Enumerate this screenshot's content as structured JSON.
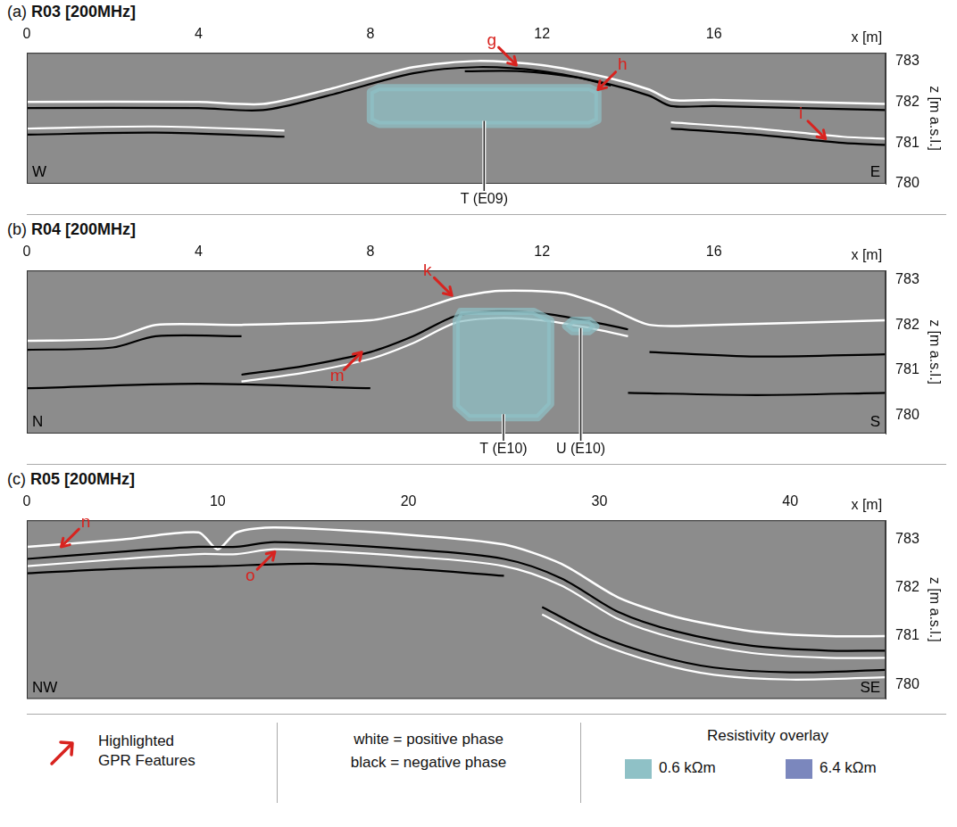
{
  "chart_data": [
    {
      "type": "line",
      "panel": "(a)",
      "title": "R03 [200MHz]",
      "x_label": "x [m]",
      "y_label": "z [m a.s.l.]",
      "xlim": [
        0,
        20
      ],
      "xticks": [
        0,
        4,
        8,
        12,
        16
      ],
      "ylim": [
        780,
        783.2
      ],
      "yticks": [
        780,
        781,
        782,
        783
      ],
      "grid": false,
      "direction_labels": {
        "left": "W",
        "right": "E"
      },
      "surface": {
        "x": [
          0,
          4,
          5.5,
          7,
          9,
          10.5,
          12,
          13.5,
          14.5,
          15,
          16,
          20
        ],
        "z": [
          782.0,
          782.0,
          781.95,
          782.3,
          782.85,
          783.0,
          782.9,
          782.6,
          782.3,
          782.05,
          782.05,
          781.95
        ]
      },
      "reflectors": [
        {
          "color": "#000000",
          "x": [
            0,
            4,
            5.5,
            7,
            9,
            10.5,
            12,
            13.5,
            14.5,
            15,
            16,
            20
          ],
          "z": [
            781.85,
            781.85,
            781.8,
            782.15,
            782.7,
            782.85,
            782.75,
            782.45,
            782.15,
            781.9,
            781.9,
            781.8
          ]
        },
        {
          "color": "#000000",
          "x": [
            10.2,
            11.5,
            12.8,
            13.6
          ],
          "z": [
            782.75,
            782.75,
            782.6,
            782.4
          ]
        },
        {
          "color": "#000000",
          "x": [
            0,
            3,
            6
          ],
          "z": [
            781.2,
            781.25,
            781.15
          ]
        },
        {
          "color": "#ffffff",
          "x": [
            0,
            3,
            6
          ],
          "z": [
            781.35,
            781.4,
            781.3
          ]
        },
        {
          "color": "#000000",
          "x": [
            15,
            17,
            19,
            20
          ],
          "z": [
            781.35,
            781.2,
            781.0,
            780.95
          ]
        },
        {
          "color": "#ffffff",
          "x": [
            15,
            17,
            19,
            20
          ],
          "z": [
            781.5,
            781.35,
            781.15,
            781.1
          ]
        }
      ],
      "resistivity_bodies": [
        {
          "label": "T (E09)",
          "resistivity": 0.6,
          "x": [
            8.2,
            13.1,
            13.3,
            13.3,
            13.1,
            8.2,
            8.0,
            8.0
          ],
          "z": [
            782.35,
            782.35,
            782.25,
            781.55,
            781.45,
            781.45,
            781.55,
            782.25
          ]
        }
      ],
      "features": [
        {
          "label": "g",
          "x": 11.4,
          "z": 782.9,
          "direction": "down-right"
        },
        {
          "label": "h",
          "x": 13.3,
          "z": 782.3,
          "direction": "down-left"
        },
        {
          "label": "i",
          "x": 18.6,
          "z": 781.1,
          "direction": "down-right"
        }
      ]
    },
    {
      "type": "line",
      "panel": "(b)",
      "title": "R04 [200MHz]",
      "x_label": "x [m]",
      "y_label": "z [m a.s.l.]",
      "xlim": [
        0,
        20
      ],
      "xticks": [
        0,
        4,
        8,
        12,
        16
      ],
      "ylim": [
        779.6,
        783.2
      ],
      "yticks": [
        780,
        781,
        782,
        783
      ],
      "grid": false,
      "direction_labels": {
        "left": "N",
        "right": "S"
      },
      "surface": {
        "x": [
          0,
          2,
          3,
          5,
          8,
          9,
          10,
          11,
          12.5,
          13.5,
          14.5,
          16,
          20
        ],
        "z": [
          781.65,
          781.7,
          782.0,
          782.0,
          782.1,
          782.3,
          782.6,
          782.75,
          782.7,
          782.4,
          782.0,
          782.0,
          782.1
        ]
      },
      "reflectors": [
        {
          "color": "#000000",
          "x": [
            5,
            6.5,
            8,
            9,
            10,
            11,
            12,
            13,
            14
          ],
          "z": [
            780.9,
            781.1,
            781.4,
            781.75,
            782.2,
            782.3,
            782.25,
            782.1,
            781.9
          ]
        },
        {
          "color": "#ffffff",
          "x": [
            5,
            6.5,
            8,
            9,
            10,
            11,
            12,
            13,
            14
          ],
          "z": [
            780.75,
            780.95,
            781.25,
            781.6,
            782.05,
            782.15,
            782.1,
            781.95,
            781.75
          ]
        },
        {
          "color": "#000000",
          "x": [
            0,
            2,
            3,
            5
          ],
          "z": [
            781.45,
            781.5,
            781.75,
            781.75
          ]
        },
        {
          "color": "#000000",
          "x": [
            14.5,
            17,
            20
          ],
          "z": [
            781.4,
            781.3,
            781.35
          ]
        },
        {
          "color": "#000000",
          "x": [
            0,
            4,
            8
          ],
          "z": [
            780.6,
            780.7,
            780.6
          ]
        },
        {
          "color": "#000000",
          "x": [
            14,
            17,
            20
          ],
          "z": [
            780.5,
            780.45,
            780.5
          ]
        }
      ],
      "resistivity_bodies": [
        {
          "label": "T (E10)",
          "resistivity": 0.6,
          "x": [
            10.1,
            11.8,
            12.2,
            12.2,
            11.9,
            10.3,
            10.0,
            10.0
          ],
          "z": [
            782.3,
            782.3,
            782.1,
            780.25,
            779.95,
            779.95,
            780.2,
            782.1
          ]
        },
        {
          "label": "U (E10)",
          "resistivity": 0.6,
          "x": [
            12.7,
            13.1,
            13.25,
            13.1,
            12.7,
            12.55
          ],
          "z": [
            782.1,
            782.1,
            781.97,
            781.85,
            781.85,
            781.97
          ]
        }
      ],
      "features": [
        {
          "label": "k",
          "x": 9.9,
          "z": 782.65,
          "direction": "down-right"
        },
        {
          "label": "m",
          "x": 7.8,
          "z": 781.4,
          "direction": "up-right"
        }
      ]
    },
    {
      "type": "line",
      "panel": "(c)",
      "title": "R05 [200MHz]",
      "x_label": "x [m]",
      "y_label": "z [m a.s.l.]",
      "xlim": [
        0,
        45
      ],
      "xticks": [
        0,
        10,
        20,
        30,
        40
      ],
      "ylim": [
        779.7,
        783.4
      ],
      "yticks": [
        780,
        781,
        782,
        783
      ],
      "grid": false,
      "direction_labels": {
        "left": "NW",
        "right": "SE"
      },
      "surface": {
        "x": [
          0,
          5,
          9,
          10,
          11,
          13,
          20,
          25,
          28,
          31,
          34,
          38,
          42,
          45
        ],
        "z": [
          782.85,
          783.0,
          783.15,
          782.8,
          783.15,
          783.25,
          783.1,
          782.9,
          782.5,
          781.8,
          781.4,
          781.1,
          781.0,
          781.0
        ]
      },
      "reflectors": [
        {
          "color": "#000000",
          "x": [
            0,
            5,
            9,
            11,
            13,
            20,
            25,
            28,
            31,
            34,
            38,
            42,
            45
          ],
          "z": [
            782.6,
            782.75,
            782.85,
            782.85,
            782.95,
            782.8,
            782.6,
            782.2,
            781.5,
            781.1,
            780.8,
            780.7,
            780.7
          ]
        },
        {
          "color": "#ffffff",
          "x": [
            0,
            5,
            9,
            11,
            13,
            20,
            25,
            28,
            31,
            34,
            38,
            42,
            45
          ],
          "z": [
            782.45,
            782.6,
            782.7,
            782.7,
            782.8,
            782.65,
            782.45,
            782.05,
            781.35,
            780.95,
            780.65,
            780.55,
            780.55
          ]
        },
        {
          "color": "#000000",
          "x": [
            0,
            5,
            10,
            15,
            20,
            25
          ],
          "z": [
            782.3,
            782.4,
            782.45,
            782.5,
            782.4,
            782.25
          ]
        },
        {
          "color": "#000000",
          "x": [
            27,
            30,
            33,
            36,
            40,
            45
          ],
          "z": [
            781.6,
            781.0,
            780.6,
            780.35,
            780.25,
            780.3
          ]
        },
        {
          "color": "#ffffff",
          "x": [
            27,
            30,
            33,
            36,
            40,
            45
          ],
          "z": [
            781.45,
            780.85,
            780.45,
            780.2,
            780.1,
            780.15
          ]
        }
      ],
      "resistivity_bodies": [],
      "features": [
        {
          "label": "n",
          "x": 1.8,
          "z": 782.85,
          "direction": "down-left"
        },
        {
          "label": "o",
          "x": 13.0,
          "z": 782.75,
          "direction": "up-right"
        }
      ]
    }
  ],
  "key": {
    "features": "Highlighted GPR Features",
    "phase": [
      "white = positive phase",
      "black = negative phase"
    ],
    "overlay_title": "Resistivity overlay",
    "resistivity_overlay": [
      {
        "value": 0.6,
        "label": "0.6 kΩm",
        "color": "#8fc1c6"
      },
      {
        "value": 6.4,
        "label": "6.4 kΩm",
        "color": "#7b87bd"
      }
    ]
  }
}
